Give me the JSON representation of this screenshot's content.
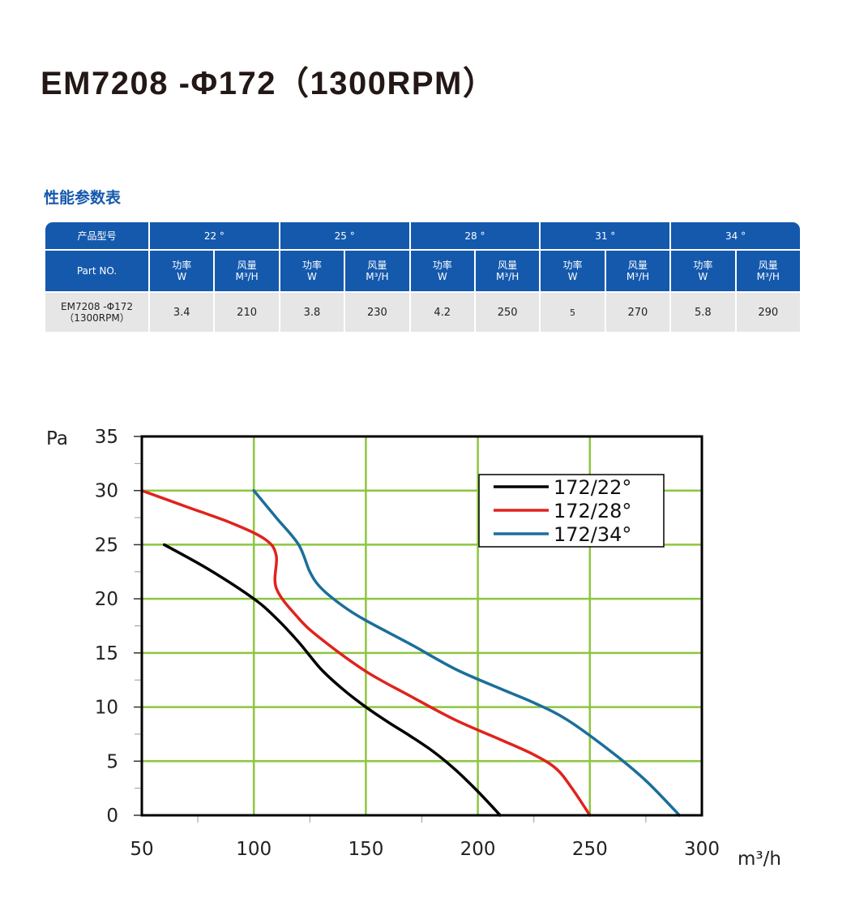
{
  "title": "EM7208 -Φ172（1300RPM）",
  "table": {
    "heading": "性能参数表",
    "model_header": "产品型号",
    "part_header": "Part NO.",
    "angles": [
      "22 °",
      "25 °",
      "28 °",
      "31 °",
      "34 °"
    ],
    "col_power": [
      "功率",
      "W"
    ],
    "col_airflow": [
      "风量",
      "M³/H"
    ],
    "part_name": [
      "EM7208 -Φ172",
      "（1300RPM）"
    ],
    "values": [
      {
        "power": "3.4",
        "airflow": "210"
      },
      {
        "power": "3.8",
        "airflow": "230"
      },
      {
        "power": "4.2",
        "airflow": "250"
      },
      {
        "power": "5",
        "airflow": "270"
      },
      {
        "power": "5.8",
        "airflow": "290"
      }
    ]
  },
  "chart_data": {
    "type": "line",
    "ylabel": "Pa",
    "xlabel": "m³/h",
    "xlim": [
      50,
      300
    ],
    "ylim": [
      0,
      35
    ],
    "xticks": [
      50,
      100,
      150,
      200,
      250,
      300
    ],
    "yticks": [
      0,
      5,
      10,
      15,
      20,
      25,
      30,
      35
    ],
    "grid": true,
    "legend": "top-right",
    "series": [
      {
        "name": "172/22°",
        "color": "#000000",
        "x": [
          60,
          80,
          100,
          110,
          120,
          130,
          140,
          150,
          160,
          170,
          180,
          190,
          200,
          210
        ],
        "y": [
          25,
          22.7,
          20,
          18.2,
          16,
          13.5,
          11.6,
          10,
          8.6,
          7.3,
          5.9,
          4.2,
          2.2,
          0
        ]
      },
      {
        "name": "172/28°",
        "color": "#e0231d",
        "x": [
          50,
          70,
          90,
          105,
          110,
          110,
          120,
          130,
          150,
          170,
          190,
          210,
          225,
          235,
          242,
          250
        ],
        "y": [
          30,
          28.5,
          27,
          25.5,
          24,
          21,
          18.2,
          16.3,
          13.3,
          11,
          8.8,
          7,
          5.6,
          4.3,
          2.5,
          0
        ]
      },
      {
        "name": "172/34°",
        "color": "#1d6e9a",
        "x": [
          100,
          110,
          120,
          125,
          130,
          140,
          150,
          170,
          190,
          210,
          225,
          240,
          260,
          275,
          290
        ],
        "y": [
          30,
          27.5,
          25,
          22.5,
          21,
          19.3,
          18,
          15.8,
          13.5,
          11.7,
          10.4,
          8.8,
          5.8,
          3.2,
          0
        ]
      }
    ]
  }
}
